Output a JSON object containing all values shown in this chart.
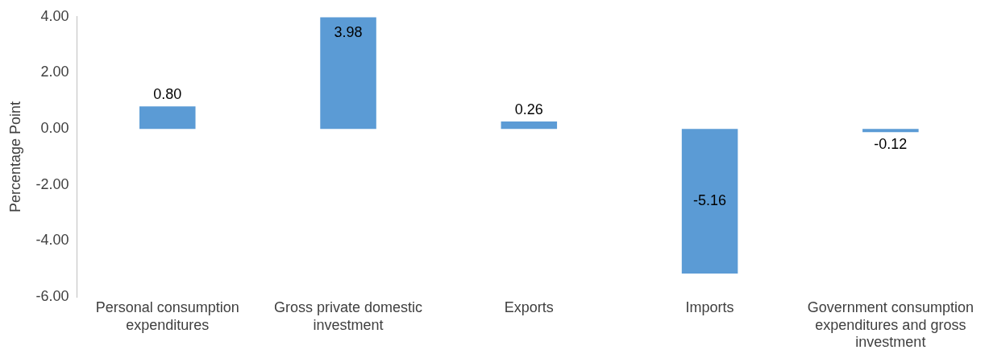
{
  "chart_data": {
    "type": "bar",
    "ylabel": "Percentage Point",
    "categories": [
      "Personal consumption expenditures",
      "Gross private domestic investment",
      "Exports",
      "Imports",
      "Government consumption expenditures and gross investment"
    ],
    "values": [
      0.8,
      3.98,
      0.26,
      -5.16,
      -0.12
    ],
    "color": "#5b9bd5",
    "value_labels": [
      "0.80",
      "3.98",
      "0.26",
      "-5.16",
      "-0.12"
    ],
    "ylim": [
      -6,
      4
    ],
    "yticks": [
      {
        "value": -6,
        "label": "-6.00"
      },
      {
        "value": -4,
        "label": "-4.00"
      },
      {
        "value": -2,
        "label": "-2.00"
      },
      {
        "value": 0,
        "label": "0.00"
      },
      {
        "value": 2,
        "label": "2.00"
      },
      {
        "value": 4,
        "label": "4.00"
      }
    ],
    "grid": false,
    "legend": false
  }
}
